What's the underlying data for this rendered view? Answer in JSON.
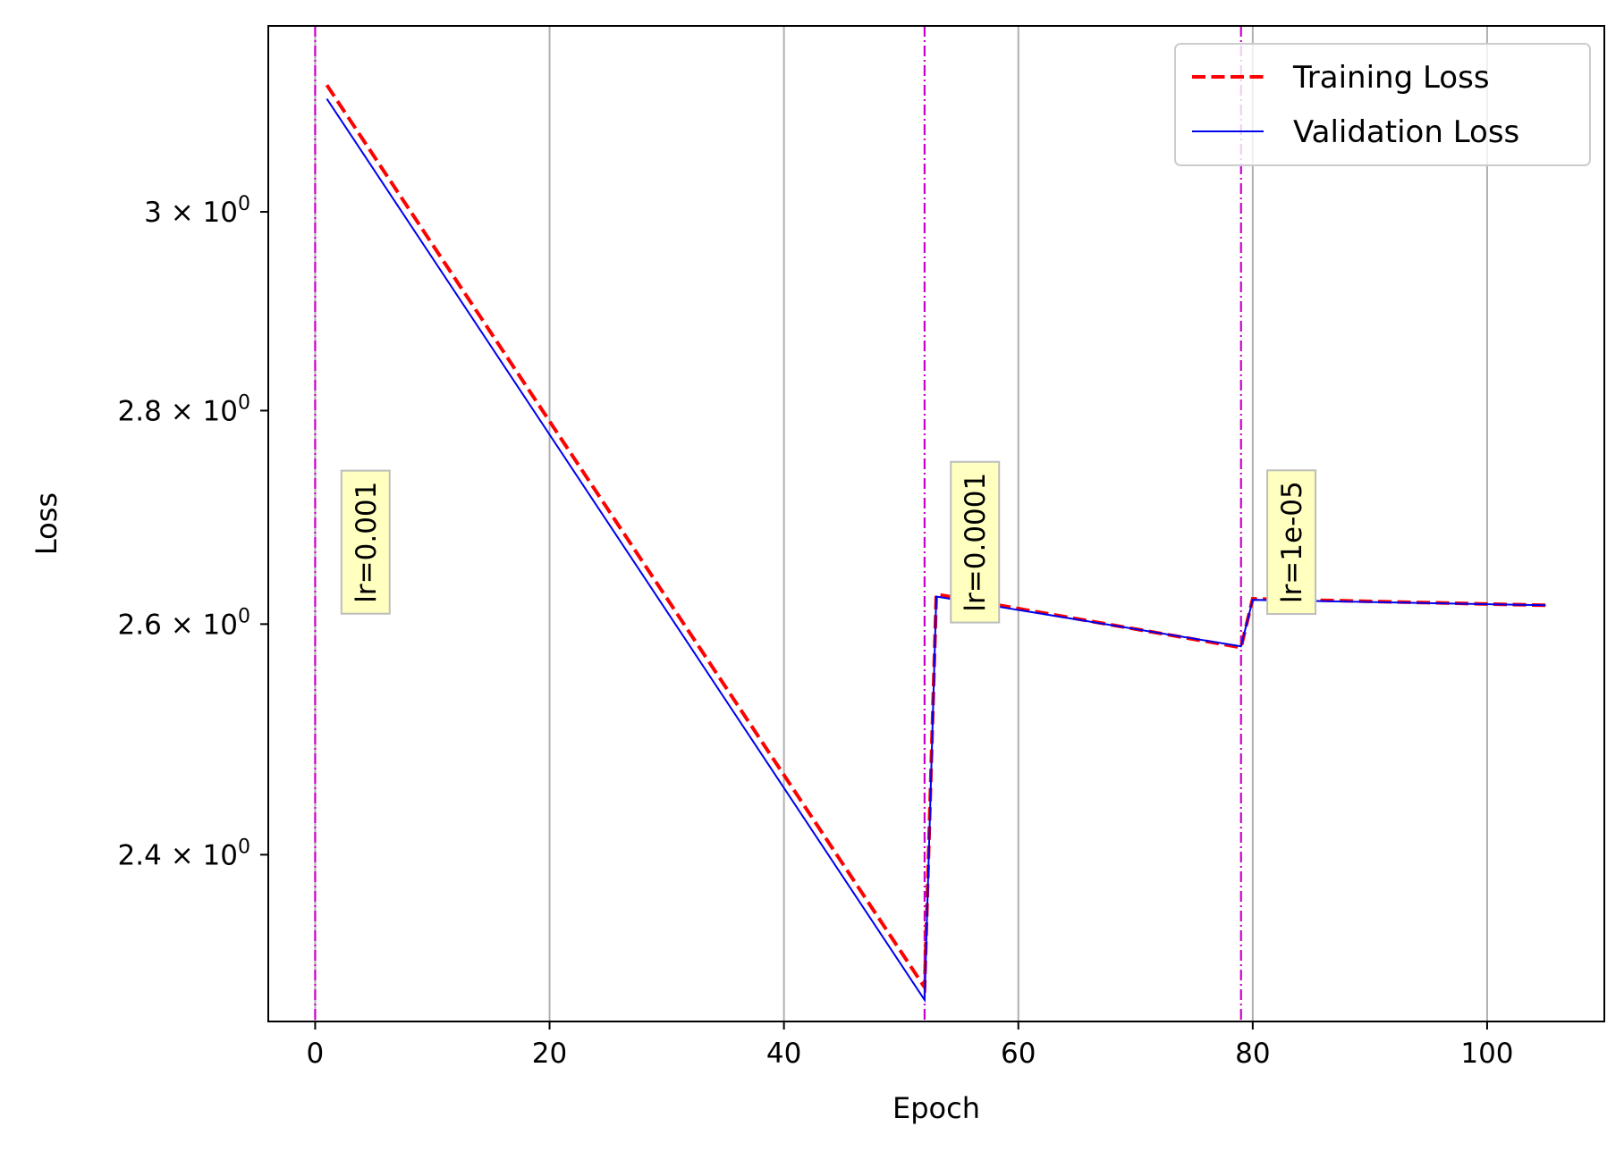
{
  "chart_data": {
    "type": "line",
    "xlabel": "Epoch",
    "ylabel": "Loss",
    "xlim": [
      -4,
      110
    ],
    "ylim": [
      2.265,
      3.2
    ],
    "yscale": "log",
    "grid": "x-only",
    "legend_position": "top-right",
    "xticks": [
      {
        "value": 0,
        "label": "0"
      },
      {
        "value": 20,
        "label": "20"
      },
      {
        "value": 40,
        "label": "40"
      },
      {
        "value": 60,
        "label": "60"
      },
      {
        "value": 80,
        "label": "80"
      },
      {
        "value": 100,
        "label": "100"
      }
    ],
    "yticks": [
      {
        "value": 2.4,
        "mantissa": "2.4",
        "times": "×",
        "base": "10",
        "exp": "0"
      },
      {
        "value": 2.6,
        "mantissa": "2.6",
        "times": "×",
        "base": "10",
        "exp": "0"
      },
      {
        "value": 2.8,
        "mantissa": "2.8",
        "times": "×",
        "base": "10",
        "exp": "0"
      },
      {
        "value": 3.0,
        "mantissa": "3",
        "times": "×",
        "base": "10",
        "exp": "0"
      }
    ],
    "series": [
      {
        "name": "Training Loss",
        "color": "#ff0000",
        "style": "dashed",
        "points": [
          [
            1,
            3.135
          ],
          [
            52,
            2.292
          ],
          [
            53,
            2.627
          ],
          [
            79,
            2.579
          ],
          [
            80,
            2.623
          ],
          [
            105,
            2.617
          ]
        ]
      },
      {
        "name": "Validation Loss",
        "color": "#0000ee",
        "style": "solid",
        "points": [
          [
            1,
            3.12
          ],
          [
            52,
            2.282
          ],
          [
            53,
            2.625
          ],
          [
            79,
            2.58
          ],
          [
            80,
            2.622
          ],
          [
            105,
            2.617
          ]
        ]
      }
    ],
    "lr_markers": [
      {
        "x": 0,
        "label": "lr=0.001",
        "label_x": 4.3,
        "label_y": 2.675
      },
      {
        "x": 52,
        "label": "lr=0.0001",
        "label_x": 56.3,
        "label_y": 2.675
      },
      {
        "x": 79,
        "label": "lr=1e-05",
        "label_x": 83.3,
        "label_y": 2.675
      }
    ],
    "colors": {
      "marker_line": "#cc00cc",
      "annotation_bg": "#ffffbf",
      "annotation_border": "#bdbdbd",
      "grid": "#b0b0b0"
    }
  }
}
